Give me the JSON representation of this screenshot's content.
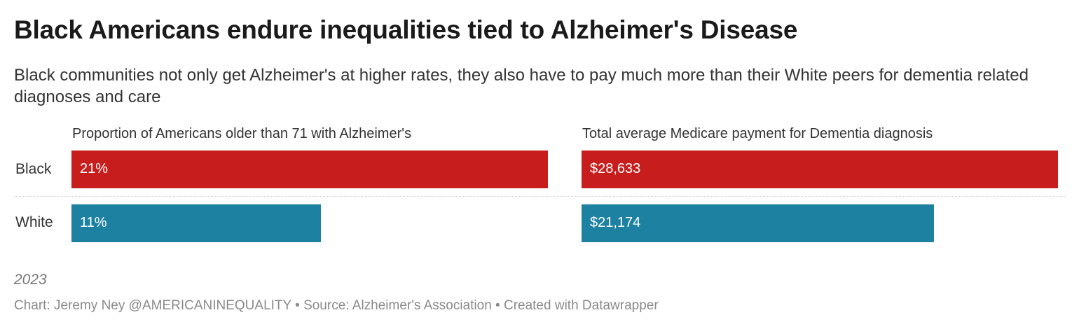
{
  "header": {
    "title": "Black Americans endure inequalities tied to Alzheimer's Disease",
    "subtitle": "Black communities not only get Alzheimer's at higher rates, they also have to pay much more than their White peers for dementia related diagnoses and care"
  },
  "chart_data": {
    "type": "bar",
    "orientation": "horizontal",
    "categories": [
      "Black",
      "White"
    ],
    "panels": [
      {
        "name": "Proportion of Americans older than 71 with Alzheimer's",
        "values": [
          21,
          11
        ],
        "labels": [
          "21%",
          "11%"
        ],
        "xlim": [
          0,
          21
        ]
      },
      {
        "name": "Total average Medicare payment for Dementia diagnosis",
        "values": [
          28633,
          21174
        ],
        "labels": [
          "$28,633",
          "$21,174"
        ],
        "xlim": [
          0,
          28633
        ]
      }
    ],
    "colors": {
      "Black": "#c71e1d",
      "White": "#1d81a2"
    }
  },
  "footer": {
    "note": "2023",
    "credit": "Chart: Jeremy Ney @AMERICANINEQUALITY • Source: Alzheimer's Association • Created with Datawrapper"
  }
}
